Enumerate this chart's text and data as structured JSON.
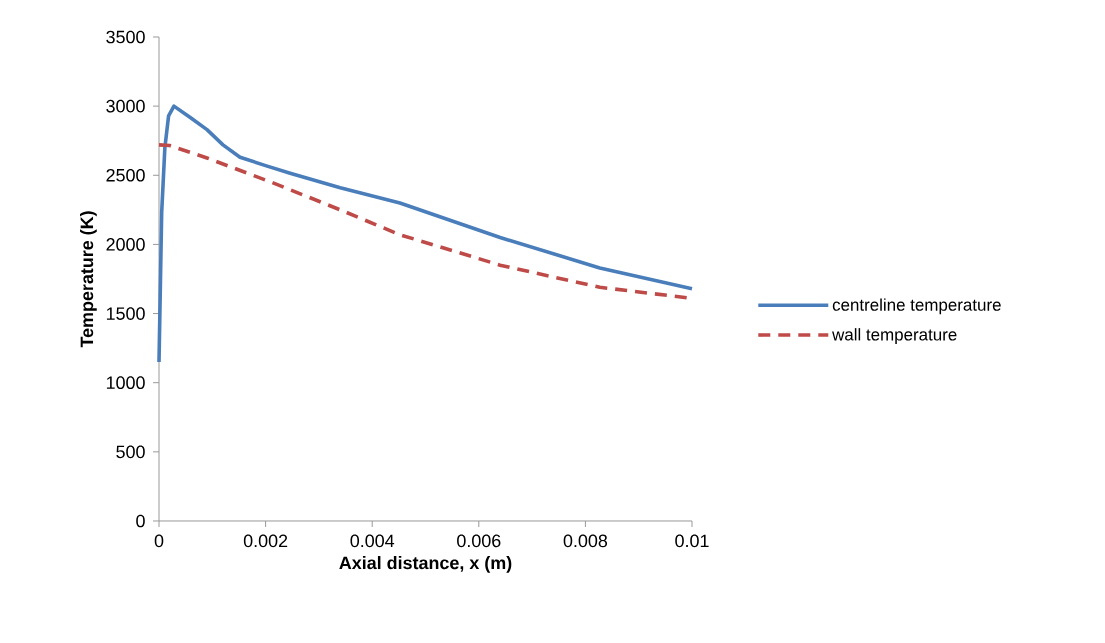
{
  "chart_data": {
    "type": "line",
    "xlabel": "Axial distance, x (m)",
    "ylabel": "Temperature (K)",
    "xlim": [
      0,
      0.01
    ],
    "ylim": [
      0,
      3500
    ],
    "xticks": [
      0,
      0.002,
      0.004,
      0.006,
      0.008,
      0.01
    ],
    "yticks": [
      0,
      500,
      1000,
      1500,
      2000,
      2500,
      3000,
      3500
    ],
    "grid": false,
    "legend": "right",
    "series": [
      {
        "name": "centreline temperature",
        "color": "#4a7ebb",
        "line_style": "solid",
        "x": [
          0,
          5e-05,
          0.00011,
          0.00018,
          0.00028,
          0.00058,
          0.0009,
          0.0012,
          0.00152,
          0.002,
          0.00246,
          0.0034,
          0.00452,
          0.0064,
          0.00827,
          0.01
        ],
        "values": [
          1150,
          2230,
          2700,
          2930,
          3000,
          2920,
          2830,
          2720,
          2630,
          2570,
          2515,
          2410,
          2300,
          2050,
          1830,
          1680
        ]
      },
      {
        "name": "wall temperature",
        "color": "#be4b48",
        "line_style": "dashed",
        "x": [
          0,
          0.0002,
          0.0009,
          0.00214,
          0.0034,
          0.00452,
          0.0064,
          0.00827,
          0.01
        ],
        "values": [
          2720,
          2715,
          2625,
          2445,
          2250,
          2070,
          1850,
          1690,
          1610
        ]
      }
    ]
  }
}
